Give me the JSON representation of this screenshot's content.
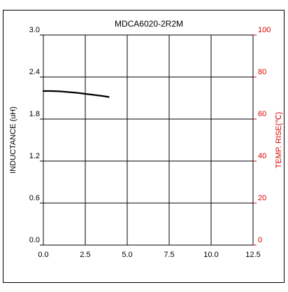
{
  "chart_data": {
    "type": "line",
    "title": "MDCA6020-2R2M",
    "xlabel": "",
    "ylabel": "INDUCTANCE (uH)",
    "y2label": "TEMP. RISE(℃)",
    "xlim": [
      0,
      12.5
    ],
    "ylim": [
      0,
      3.0
    ],
    "y2lim": [
      0,
      100
    ],
    "x_ticks": [
      0.0,
      2.5,
      5.0,
      7.5,
      10.0,
      12.5
    ],
    "x_tick_labels": [
      "0.0",
      "2.5",
      "5.0",
      "7.5",
      "10.0",
      "12.5"
    ],
    "y_ticks": [
      0.0,
      0.6,
      1.2,
      1.8,
      2.4,
      3.0
    ],
    "y_tick_labels": [
      "0.0",
      "0.6",
      "1.2",
      "1.8",
      "2.4",
      "3.0"
    ],
    "y2_ticks": [
      0,
      20,
      40,
      60,
      80,
      100
    ],
    "y2_tick_labels": [
      "0",
      "20",
      "40",
      "60",
      "80",
      "100"
    ],
    "grid": true,
    "series": [
      {
        "axis": "left",
        "x": [
          0.0,
          0.5,
          1.0,
          1.5,
          2.0,
          2.5,
          3.0,
          3.5,
          3.9
        ],
        "y": [
          2.2,
          2.2,
          2.195,
          2.185,
          2.175,
          2.16,
          2.145,
          2.13,
          2.115
        ]
      }
    ],
    "colors": {
      "frame": "#000000",
      "grid": "#000000",
      "left_axis_text": "#000000",
      "right_axis_text": "#dd0000",
      "inductance_line": "#000000"
    }
  }
}
